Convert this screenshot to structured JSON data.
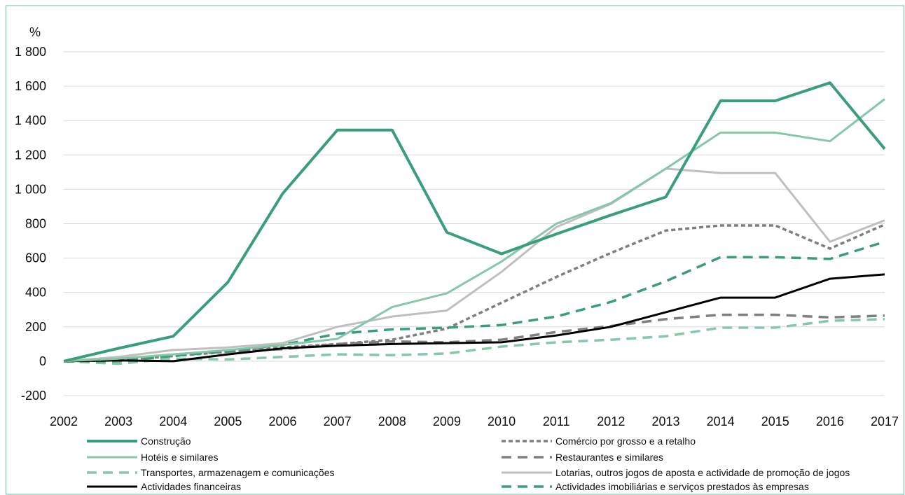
{
  "colors": {
    "frame": "#6abf9e",
    "grid": "#d9d9d9",
    "dark_green": "#3a9e7a",
    "light_green": "#86c7a9",
    "dark_gray": "#7f7f7f",
    "light_gray": "#bfbfbf",
    "black": "#000000"
  },
  "chart_data": {
    "type": "line",
    "title": "",
    "ylabel": "%",
    "xlabel": "",
    "ylim": [
      -200,
      1800
    ],
    "yticks": [
      -200,
      0,
      200,
      400,
      600,
      800,
      1000,
      1200,
      1400,
      1600,
      1800
    ],
    "ytick_labels": [
      "-200",
      "0",
      "200",
      "400",
      "600",
      "800",
      "1 000",
      "1 200",
      "1 400",
      "1 600",
      "1 800"
    ],
    "grid": true,
    "legend_position": "bottom",
    "x": [
      "2002",
      "2003",
      "2004",
      "2005",
      "2006",
      "2007",
      "2008",
      "2009",
      "2010",
      "2011",
      "2012",
      "2013",
      "2014",
      "2015",
      "2016",
      "2017"
    ],
    "series": [
      {
        "name": "Construção",
        "color": "#3a9e7a",
        "style": "solid",
        "width": 4,
        "values": [
          0,
          75,
          145,
          460,
          975,
          1345,
          1345,
          750,
          625,
          740,
          850,
          955,
          1515,
          1515,
          1620,
          1235
        ]
      },
      {
        "name": "Comércio por grosso e a retalho",
        "color": "#7f7f7f",
        "style": "dotted",
        "width": 3.5,
        "values": [
          0,
          5,
          30,
          55,
          80,
          100,
          125,
          190,
          340,
          490,
          630,
          760,
          790,
          790,
          655,
          795
        ]
      },
      {
        "name": "Hotéis e similares",
        "color": "#86c7a9",
        "style": "solid",
        "width": 3,
        "values": [
          0,
          15,
          40,
          65,
          95,
          130,
          315,
          395,
          580,
          800,
          920,
          1120,
          1330,
          1330,
          1280,
          1525
        ]
      },
      {
        "name": "Restaurantes e similares",
        "color": "#7f7f7f",
        "style": "dashed",
        "width": 3.5,
        "values": [
          0,
          5,
          40,
          55,
          70,
          100,
          115,
          110,
          125,
          170,
          205,
          245,
          270,
          270,
          255,
          265
        ]
      },
      {
        "name": "Transportes, armazenagem e comunicações",
        "color": "#86c7a9",
        "style": "dashed",
        "width": 3.5,
        "values": [
          0,
          -15,
          15,
          10,
          25,
          40,
          35,
          45,
          85,
          110,
          125,
          145,
          195,
          195,
          235,
          245
        ]
      },
      {
        "name": "Lotarias, outros jogos de aposta e actividade de promoção de jogos",
        "color": "#bfbfbf",
        "style": "solid",
        "width": 3,
        "values": [
          0,
          25,
          65,
          80,
          105,
          200,
          260,
          295,
          520,
          780,
          915,
          1120,
          1095,
          1095,
          695,
          820
        ]
      },
      {
        "name": "Actividades financeiras",
        "color": "#000000",
        "style": "solid",
        "width": 3,
        "values": [
          0,
          5,
          0,
          40,
          75,
          90,
          100,
          105,
          110,
          150,
          200,
          285,
          370,
          370,
          480,
          505
        ]
      },
      {
        "name": "Actividades imobiliárias e serviços prestados às empresas",
        "color": "#3a9e7a",
        "style": "dashed",
        "width": 3.5,
        "values": [
          0,
          0,
          30,
          60,
          95,
          160,
          185,
          195,
          210,
          260,
          345,
          465,
          605,
          605,
          595,
          695
        ]
      }
    ]
  }
}
